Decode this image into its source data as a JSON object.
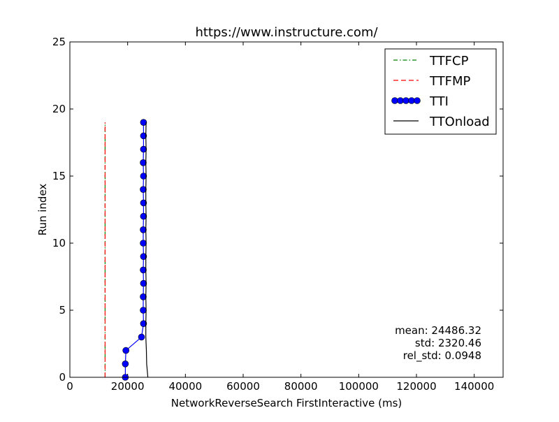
{
  "chart_data": {
    "type": "line",
    "title": "https://www.instructure.com/",
    "xlabel": "NetworkReverseSearch FirstInteractive (ms)",
    "ylabel": "Run index",
    "xlim": [
      0,
      150000
    ],
    "ylim": [
      0,
      25
    ],
    "x_ticks": [
      0,
      20000,
      40000,
      60000,
      80000,
      100000,
      120000,
      140000
    ],
    "y_ticks": [
      0,
      5,
      10,
      15,
      20,
      25
    ],
    "legend_position": "top-right",
    "grid": false,
    "series": [
      {
        "name": "TTFCP",
        "style": "dash-dot",
        "color": "#008000",
        "points": [
          [
            12200,
            0
          ],
          [
            12200,
            1
          ],
          [
            12200,
            2
          ],
          [
            12200,
            3
          ],
          [
            12200,
            4
          ],
          [
            12200,
            5
          ],
          [
            12200,
            6
          ],
          [
            12200,
            7
          ],
          [
            12200,
            8
          ],
          [
            12200,
            9
          ],
          [
            12200,
            10
          ],
          [
            12200,
            11
          ],
          [
            12200,
            12
          ],
          [
            12200,
            13
          ],
          [
            12200,
            14
          ],
          [
            12200,
            15
          ],
          [
            12200,
            16
          ],
          [
            12200,
            17
          ],
          [
            12200,
            18
          ],
          [
            12200,
            19
          ]
        ]
      },
      {
        "name": "TTFMP",
        "style": "dashed",
        "color": "#ff0000",
        "points": [
          [
            12200,
            0
          ],
          [
            12200,
            1
          ],
          [
            12200,
            2
          ],
          [
            12200,
            3
          ],
          [
            12200,
            4
          ],
          [
            12200,
            5
          ],
          [
            12200,
            6
          ],
          [
            12200,
            7
          ],
          [
            12200,
            8
          ],
          [
            12200,
            9
          ],
          [
            12200,
            10
          ],
          [
            12200,
            11
          ],
          [
            12200,
            12
          ],
          [
            12200,
            13
          ],
          [
            12200,
            14
          ],
          [
            12200,
            15
          ],
          [
            12200,
            16
          ],
          [
            12200,
            17
          ],
          [
            12200,
            18
          ],
          [
            12200,
            19
          ]
        ]
      },
      {
        "name": "TTI",
        "style": "line-marker",
        "color": "#0000ff",
        "points": [
          [
            19200,
            0
          ],
          [
            19200,
            1
          ],
          [
            19400,
            2
          ],
          [
            24800,
            3
          ],
          [
            25500,
            4
          ],
          [
            25400,
            5
          ],
          [
            25400,
            6
          ],
          [
            25500,
            7
          ],
          [
            25400,
            8
          ],
          [
            25500,
            9
          ],
          [
            25400,
            10
          ],
          [
            25400,
            11
          ],
          [
            25500,
            12
          ],
          [
            25500,
            13
          ],
          [
            25400,
            14
          ],
          [
            25500,
            15
          ],
          [
            25400,
            16
          ],
          [
            25500,
            17
          ],
          [
            25500,
            18
          ],
          [
            25500,
            19
          ]
        ]
      },
      {
        "name": "TTOnload",
        "style": "solid",
        "color": "#000000",
        "points": [
          [
            27000,
            0
          ],
          [
            26600,
            1
          ],
          [
            26500,
            2
          ],
          [
            26300,
            3
          ],
          [
            26300,
            4
          ],
          [
            26400,
            5
          ],
          [
            26300,
            6
          ],
          [
            26400,
            7
          ],
          [
            26300,
            8
          ],
          [
            26300,
            9
          ],
          [
            26400,
            10
          ],
          [
            26300,
            11
          ],
          [
            26400,
            12
          ],
          [
            26300,
            13
          ],
          [
            26300,
            14
          ],
          [
            26400,
            15
          ],
          [
            26300,
            16
          ],
          [
            26400,
            17
          ],
          [
            26300,
            18
          ],
          [
            26400,
            19
          ]
        ]
      }
    ],
    "annotations": [
      "mean: 24486.32",
      "std: 2320.46",
      "rel_std: 0.0948"
    ]
  }
}
